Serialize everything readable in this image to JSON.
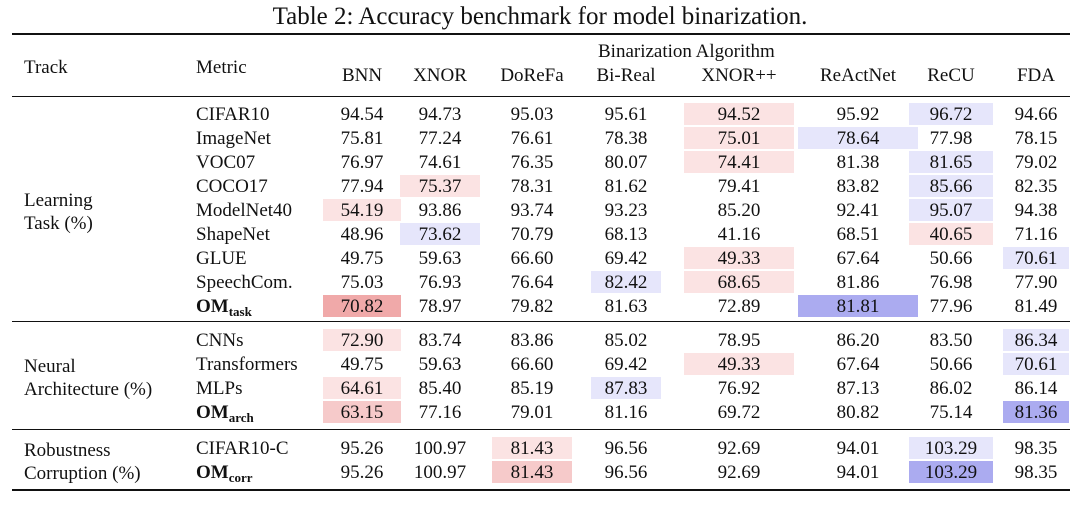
{
  "caption": "Table 2: Accuracy benchmark for model binarization.",
  "header": {
    "track": "Track",
    "metric": "Metric",
    "group": "Binarization Algorithm",
    "algorithms": [
      "BNN",
      "XNOR",
      "DoReFa",
      "Bi-Real",
      "XNOR++",
      "ReActNet",
      "ReCU",
      "FDA"
    ]
  },
  "colors": {
    "red_light": "#fbe3e3",
    "red_mid": "#f6caca",
    "red_strong": "#f0a9a9",
    "blue_light": "#e6e6fb",
    "blue_strong": "#ababf0"
  },
  "sections": [
    {
      "track": [
        "Learning",
        "Task (%)"
      ],
      "rows": [
        {
          "metric": "CIFAR10",
          "values": [
            "94.54",
            "94.73",
            "95.03",
            "95.61",
            "94.52",
            "95.92",
            "96.72",
            "94.66"
          ],
          "hl": [
            "",
            "",
            "",
            "",
            "rl",
            "",
            "bl",
            ""
          ]
        },
        {
          "metric": "ImageNet",
          "values": [
            "75.81",
            "77.24",
            "76.61",
            "78.38",
            "75.01",
            "78.64",
            "77.98",
            "78.15"
          ],
          "hl": [
            "",
            "",
            "",
            "",
            "rl",
            "bl",
            "",
            ""
          ]
        },
        {
          "metric": "VOC07",
          "values": [
            "76.97",
            "74.61",
            "76.35",
            "80.07",
            "74.41",
            "81.38",
            "81.65",
            "79.02"
          ],
          "hl": [
            "",
            "",
            "",
            "",
            "rl",
            "",
            "bl",
            ""
          ]
        },
        {
          "metric": "COCO17",
          "values": [
            "77.94",
            "75.37",
            "78.31",
            "81.62",
            "79.41",
            "83.82",
            "85.66",
            "82.35"
          ],
          "hl": [
            "",
            "rl",
            "",
            "",
            "",
            "",
            "bl",
            ""
          ]
        },
        {
          "metric": "ModelNet40",
          "values": [
            "54.19",
            "93.86",
            "93.74",
            "93.23",
            "85.20",
            "92.41",
            "95.07",
            "94.38"
          ],
          "hl": [
            "rl",
            "",
            "",
            "",
            "",
            "",
            "bl",
            ""
          ]
        },
        {
          "metric": "ShapeNet",
          "values": [
            "48.96",
            "73.62",
            "70.79",
            "68.13",
            "41.16",
            "68.51",
            "40.65",
            "71.16"
          ],
          "hl": [
            "",
            "bl",
            "",
            "",
            "",
            "",
            "rl",
            ""
          ]
        },
        {
          "metric": "GLUE",
          "values": [
            "49.75",
            "59.63",
            "66.60",
            "69.42",
            "49.33",
            "67.64",
            "50.66",
            "70.61"
          ],
          "hl": [
            "",
            "",
            "",
            "",
            "rl",
            "",
            "",
            "bl"
          ]
        },
        {
          "metric": "SpeechCom.",
          "values": [
            "75.03",
            "76.93",
            "76.64",
            "82.42",
            "68.65",
            "81.86",
            "76.98",
            "77.90"
          ],
          "hl": [
            "",
            "",
            "",
            "bl",
            "rl",
            "",
            "",
            ""
          ]
        },
        {
          "metric": "OM",
          "metric_sub": "task",
          "bold": true,
          "values": [
            "70.82",
            "78.97",
            "79.82",
            "81.63",
            "72.89",
            "81.81",
            "77.96",
            "81.49"
          ],
          "hl": [
            "rs",
            "",
            "",
            "",
            "",
            "bs",
            "",
            ""
          ]
        }
      ]
    },
    {
      "track": [
        "Neural",
        "Architecture (%)"
      ],
      "rows": [
        {
          "metric": "CNNs",
          "values": [
            "72.90",
            "83.74",
            "83.86",
            "85.02",
            "78.95",
            "86.20",
            "83.50",
            "86.34"
          ],
          "hl": [
            "rl",
            "",
            "",
            "",
            "",
            "",
            "",
            "bl"
          ]
        },
        {
          "metric": "Transformers",
          "values": [
            "49.75",
            "59.63",
            "66.60",
            "69.42",
            "49.33",
            "67.64",
            "50.66",
            "70.61"
          ],
          "hl": [
            "",
            "",
            "",
            "",
            "rl",
            "",
            "",
            "bl"
          ]
        },
        {
          "metric": "MLPs",
          "values": [
            "64.61",
            "85.40",
            "85.19",
            "87.83",
            "76.92",
            "87.13",
            "86.02",
            "86.14"
          ],
          "hl": [
            "rl",
            "",
            "",
            "bl",
            "",
            "",
            "",
            ""
          ]
        },
        {
          "metric": "OM",
          "metric_sub": "arch",
          "bold": true,
          "values": [
            "63.15",
            "77.16",
            "79.01",
            "81.16",
            "69.72",
            "80.82",
            "75.14",
            "81.36"
          ],
          "hl": [
            "rm",
            "",
            "",
            "",
            "",
            "",
            "",
            "bs"
          ]
        }
      ]
    },
    {
      "track": [
        "Robustness",
        "Corruption (%)"
      ],
      "rows": [
        {
          "metric": "CIFAR10-C",
          "values": [
            "95.26",
            "100.97",
            "81.43",
            "96.56",
            "92.69",
            "94.01",
            "103.29",
            "98.35"
          ],
          "hl": [
            "",
            "",
            "rl",
            "",
            "",
            "",
            "bl",
            ""
          ]
        },
        {
          "metric": "OM",
          "metric_sub": "corr",
          "bold": true,
          "values": [
            "95.26",
            "100.97",
            "81.43",
            "96.56",
            "92.69",
            "94.01",
            "103.29",
            "98.35"
          ],
          "hl": [
            "",
            "",
            "rm",
            "",
            "",
            "",
            "bs",
            ""
          ]
        }
      ]
    }
  ]
}
